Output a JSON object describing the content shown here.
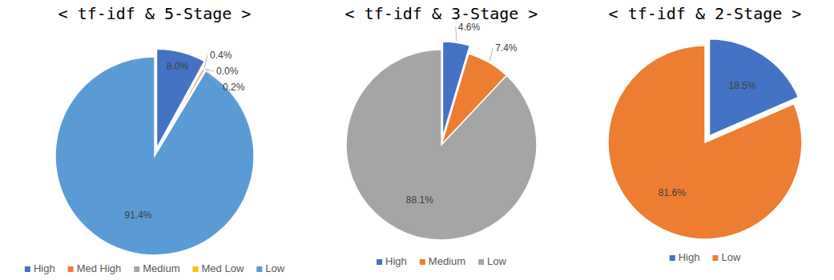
{
  "chart_data": [
    {
      "type": "pie",
      "title": "< tf-idf & 5-Stage >",
      "categories": [
        "High",
        "Med High",
        "Medium",
        "Med Low",
        "Low"
      ],
      "values": [
        8.0,
        0.4,
        0.0,
        0.2,
        91.4
      ],
      "value_labels": [
        "8.0%",
        "0.4%",
        "0.0%",
        "0.2%",
        "91.4%"
      ],
      "colors": [
        "#4472c4",
        "#ed7d31",
        "#a5a5a5",
        "#ffc000",
        "#5b9bd5"
      ],
      "data_labels": true,
      "legend": "bottom"
    },
    {
      "type": "pie",
      "title": "< tf-idf & 3-Stage >",
      "categories": [
        "High",
        "Medium",
        "Low"
      ],
      "values": [
        4.6,
        7.4,
        88.1
      ],
      "value_labels": [
        "4.6%",
        "7.4%",
        "88.1%"
      ],
      "colors": [
        "#4472c4",
        "#ed7d31",
        "#a5a5a5"
      ],
      "data_labels": true,
      "legend": "bottom"
    },
    {
      "type": "pie",
      "title": "< tf-idf & 2-Stage >",
      "categories": [
        "High",
        "Low"
      ],
      "values": [
        18.5,
        81.6
      ],
      "value_labels": [
        "18.5%",
        "81.6%"
      ],
      "colors": [
        "#4472c4",
        "#ed7d31"
      ],
      "data_labels": true,
      "legend": "bottom"
    }
  ]
}
